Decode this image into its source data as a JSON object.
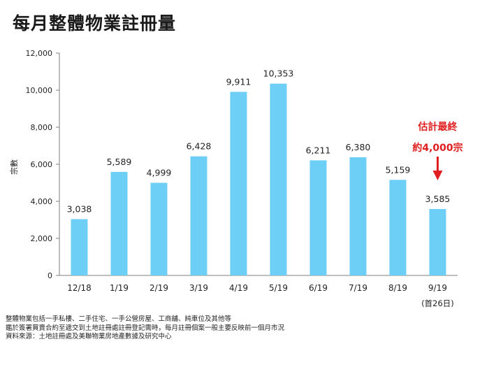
{
  "title": "每月整體物業註冊量",
  "chart_data": {
    "type": "bar",
    "title": "每月整體物業註冊量",
    "ylabel": "宗數",
    "xlabel": "",
    "ylim": [
      0,
      12000
    ],
    "yticks": [
      0,
      2000,
      4000,
      6000,
      8000,
      10000,
      12000
    ],
    "ytick_labels": [
      "0",
      "2,000",
      "4,000",
      "6,000",
      "8,000",
      "10,000",
      "12,000"
    ],
    "categories": [
      "12/18",
      "1/19",
      "2/19",
      "3/19",
      "4/19",
      "5/19",
      "6/19",
      "7/19",
      "8/19",
      "9/19"
    ],
    "values": [
      3038,
      5589,
      4999,
      6428,
      9911,
      10353,
      6211,
      6380,
      5159,
      3585
    ],
    "value_labels": [
      "3,038",
      "5,589",
      "4,999",
      "6,428",
      "9,911",
      "10,353",
      "6,211",
      "6,380",
      "5,159",
      "3,585"
    ],
    "category_sublabels": [
      "",
      "",
      "",
      "",
      "",
      "",
      "",
      "",
      "",
      "(首26日)"
    ],
    "bar_color": "#6dcff6",
    "annotation": {
      "line1": "估計最終",
      "line2": "約4,000宗",
      "target_category": "9/19",
      "color": "#e02020"
    }
  },
  "footnotes": [
    "整體物業包括一手私樓、二手住宅、一手公營房屋、工商舖、純車位及其他等",
    "鑑於簽署買賣合約至遞交到土地註冊處註冊登記需時，每月註冊個案一般主要反映前一個月市況",
    "資料來源：土地註冊處及美聯物業房地產數據及研究中心"
  ]
}
